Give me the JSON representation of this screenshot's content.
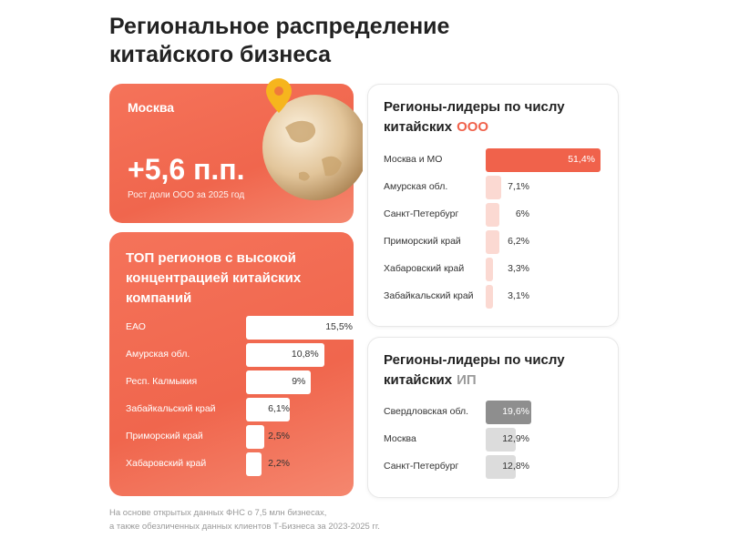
{
  "title": "Региональное распределение китайского бизнеса",
  "highlight_card": {
    "region": "Москва",
    "value": "+5,6 п.п.",
    "caption": "Рост доли ООО за 2025 год"
  },
  "chart_data": [
    {
      "type": "bar",
      "orientation": "horizontal",
      "title": "ТОП регионов с высокой концентрацией китайских компаний",
      "categories": [
        "ЕАО",
        "Амурская обл.",
        "Респ. Калмыкия",
        "Забайкальский край",
        "Приморский край",
        "Хабаровский край"
      ],
      "values": [
        15.5,
        10.8,
        9,
        6.1,
        2.5,
        2.2
      ],
      "value_labels": [
        "15,5%",
        "10,8%",
        "9%",
        "6,1%",
        "2,5%",
        "2,2%"
      ],
      "colors": [
        "#ffffff",
        "#ffffff",
        "#ffffff",
        "#ffffff",
        "#ffffff",
        "#ffffff"
      ]
    },
    {
      "type": "bar",
      "orientation": "horizontal",
      "title": "Регионы-лидеры по числу китайских",
      "title_accent": "ООО",
      "categories": [
        "Москва и МО",
        "Амурская обл.",
        "Санкт-Петербург",
        "Приморский край",
        "Хабаровский край",
        "Забайкальский край"
      ],
      "values": [
        51.4,
        7.1,
        6,
        6.2,
        3.3,
        3.1
      ],
      "value_labels": [
        "51,4%",
        "7,1%",
        "6%",
        "6,2%",
        "3,3%",
        "3,1%"
      ],
      "colors": [
        "#f0624b",
        "#fbd9d2",
        "#fbd9d2",
        "#fbd9d2",
        "#fbd9d2",
        "#fbd9d2"
      ]
    },
    {
      "type": "bar",
      "orientation": "horizontal",
      "title": "Регионы-лидеры по числу китайских",
      "title_accent": "ИП",
      "categories": [
        "Свердловская обл.",
        "Москва",
        "Санкт-Петербург"
      ],
      "values": [
        19.6,
        12.9,
        12.8
      ],
      "value_labels": [
        "19,6%",
        "12,9%",
        "12,8%"
      ],
      "colors": [
        "#8e8e8e",
        "#dcdcdc",
        "#dcdcdc"
      ]
    }
  ],
  "footnote": [
    "На основе открытых данных ФНС о 7,5 млн бизнесах,",
    "а также обезличенных данных клиентов Т-Бизнеса за 2023-2025 гг."
  ]
}
